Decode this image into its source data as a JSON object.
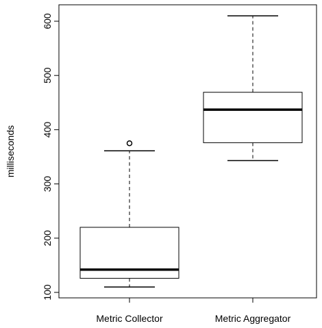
{
  "chart_data": {
    "type": "boxplot",
    "title": "",
    "xlabel": "",
    "ylabel": "milliseconds",
    "ylim": [
      95,
      640
    ],
    "yticks": [
      100,
      200,
      300,
      400,
      500,
      600
    ],
    "ytick_labels": [
      "100",
      "200",
      "300",
      "400",
      "500",
      "600"
    ],
    "categories": [
      "Metric Collector",
      "Metric Aggregator"
    ],
    "boxes": [
      {
        "label": "Metric Collector",
        "whisker_low": 110,
        "q1": 126,
        "median": 142,
        "q3": 220,
        "whisker_high": 361,
        "outliers": [
          375
        ]
      },
      {
        "label": "Metric Aggregator",
        "whisker_low": 343,
        "q1": 376,
        "median": 437,
        "q3": 469,
        "whisker_high": 610,
        "outliers": []
      }
    ],
    "grid": false,
    "legend": "none",
    "colors": {
      "box_fill": "#ffffff",
      "stroke": "#000000",
      "median": "#000000"
    }
  }
}
